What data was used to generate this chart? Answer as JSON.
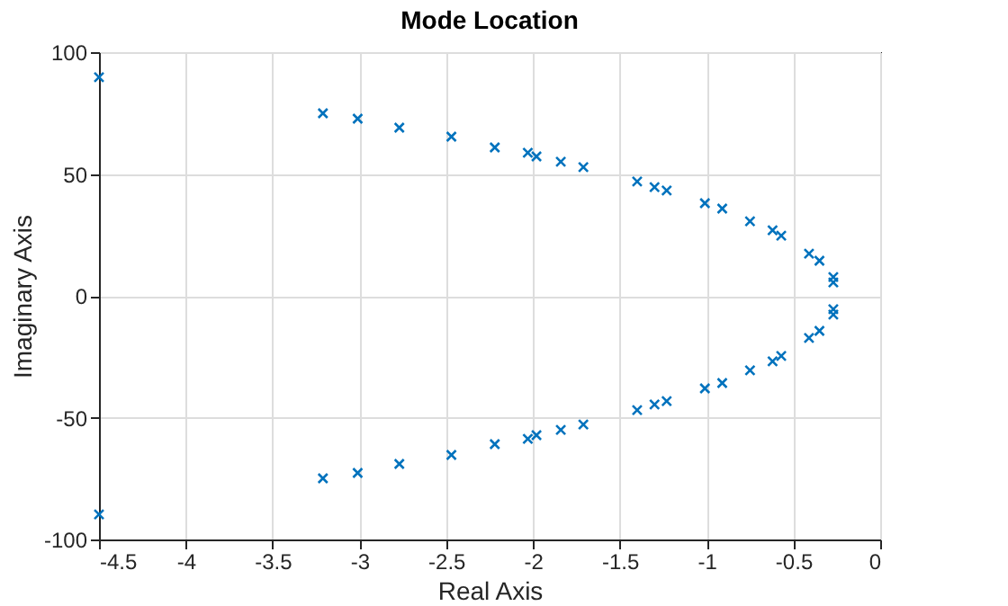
{
  "chart_data": {
    "type": "scatter",
    "title": "Mode Location",
    "xlabel": "Real Axis",
    "ylabel": "Imaginary Axis",
    "marker": "cross",
    "grid": true,
    "x": [
      -4.5,
      -3.21,
      -3.01,
      -2.77,
      -2.47,
      -2.22,
      -2.03,
      -1.98,
      -1.84,
      -1.71,
      -1.4,
      -1.3,
      -1.23,
      -1.01,
      -0.91,
      -0.75,
      -0.62,
      -0.57,
      -0.41,
      -0.35,
      -0.27,
      -0.27,
      -4.5,
      -3.21,
      -3.01,
      -2.77,
      -2.47,
      -2.22,
      -2.03,
      -1.98,
      -1.84,
      -1.71,
      -1.4,
      -1.3,
      -1.23,
      -1.01,
      -0.91,
      -0.75,
      -0.62,
      -0.57,
      -0.41,
      -0.35,
      -0.27,
      -0.27
    ],
    "series": [
      {
        "color": "#0072bd",
        "values": [
          89.7,
          74.9,
          72.7,
          69,
          65.3,
          60.9,
          58.7,
          57.2,
          55,
          52.8,
          46.9,
          44.6,
          43.2,
          38,
          35.8,
          30.6,
          26.9,
          24.7,
          17.3,
          14.4,
          7.7,
          5.5,
          -89.7,
          -74.9,
          -72.7,
          -69,
          -65.3,
          -60.9,
          -58.7,
          -57.2,
          -55,
          -52.8,
          -46.9,
          -44.6,
          -43.2,
          -38,
          -35.8,
          -30.6,
          -26.9,
          -24.7,
          -17.3,
          -14.4,
          -7.7,
          -5.5
        ]
      }
    ],
    "xlim": [
      -4.5,
      0
    ],
    "xticks": [
      -4.5,
      -4,
      -3.5,
      -3,
      -2.5,
      -2,
      -1.5,
      -1,
      -0.5,
      0
    ],
    "ylim": [
      -100,
      100
    ],
    "yticks": [
      -100,
      -50,
      0,
      50,
      100
    ]
  }
}
